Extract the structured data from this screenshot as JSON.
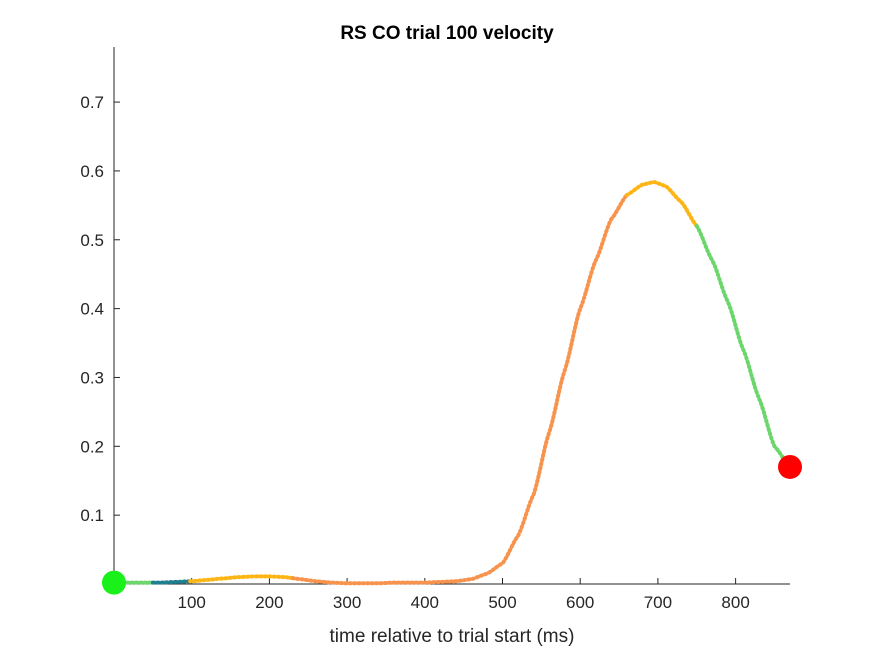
{
  "chart_data": {
    "type": "line",
    "title": "RS  CO trial 100 velocity",
    "xlabel": "time relative to trial start (ms)",
    "ylabel": "",
    "xlim": [
      0,
      870
    ],
    "ylim": [
      0,
      0.78
    ],
    "xticks": [
      100,
      200,
      300,
      400,
      500,
      600,
      700,
      800
    ],
    "xtick_labels": [
      "100",
      "200",
      "300",
      "400",
      "500",
      "600",
      "700",
      "800"
    ],
    "yticks": [
      0.1,
      0.2,
      0.3,
      0.4,
      0.5,
      0.6,
      0.7
    ],
    "ytick_labels": [
      "0.1",
      "0.2",
      "0.3",
      "0.4",
      "0.5",
      "0.6",
      "0.7"
    ],
    "grid": false,
    "series": [
      {
        "values": [
          [
            0,
            0.002
          ],
          [
            20,
            0.002
          ],
          [
            40,
            0.002
          ],
          [
            60,
            0.002
          ],
          [
            80,
            0.003
          ],
          [
            100,
            0.004
          ],
          [
            120,
            0.006
          ],
          [
            140,
            0.008
          ],
          [
            160,
            0.01
          ],
          [
            180,
            0.011
          ],
          [
            200,
            0.011
          ],
          [
            220,
            0.01
          ],
          [
            240,
            0.007
          ],
          [
            260,
            0.004
          ],
          [
            280,
            0.002
          ],
          [
            300,
            0.001
          ],
          [
            320,
            0.001
          ],
          [
            340,
            0.001
          ],
          [
            360,
            0.002
          ],
          [
            380,
            0.002
          ],
          [
            400,
            0.002
          ],
          [
            420,
            0.003
          ],
          [
            440,
            0.004
          ],
          [
            460,
            0.007
          ],
          [
            480,
            0.015
          ],
          [
            500,
            0.03
          ],
          [
            520,
            0.07
          ],
          [
            540,
            0.13
          ],
          [
            560,
            0.22
          ],
          [
            580,
            0.31
          ],
          [
            600,
            0.4
          ],
          [
            620,
            0.47
          ],
          [
            640,
            0.53
          ],
          [
            660,
            0.565
          ],
          [
            680,
            0.58
          ],
          [
            695,
            0.584
          ],
          [
            710,
            0.578
          ],
          [
            730,
            0.555
          ],
          [
            750,
            0.52
          ],
          [
            770,
            0.47
          ],
          [
            790,
            0.41
          ],
          [
            810,
            0.34
          ],
          [
            830,
            0.27
          ],
          [
            850,
            0.2
          ],
          [
            870,
            0.17
          ]
        ],
        "segments": [
          {
            "x_start": 0,
            "x_end": 50,
            "color": "#6BD66B"
          },
          {
            "x_start": 50,
            "x_end": 98,
            "color": "#1F7F8F"
          },
          {
            "x_start": 98,
            "x_end": 230,
            "color": "#FDB515"
          },
          {
            "x_start": 230,
            "x_end": 660,
            "color": "#F7934C"
          },
          {
            "x_start": 660,
            "x_end": 750,
            "color": "#FDB515"
          },
          {
            "x_start": 750,
            "x_end": 870,
            "color": "#6BD66B"
          }
        ]
      }
    ],
    "markers": [
      {
        "x": 0,
        "y": 0.002,
        "color": "#1AF01A"
      },
      {
        "x": 870,
        "y": 0.17,
        "color": "#FF0000"
      }
    ]
  }
}
